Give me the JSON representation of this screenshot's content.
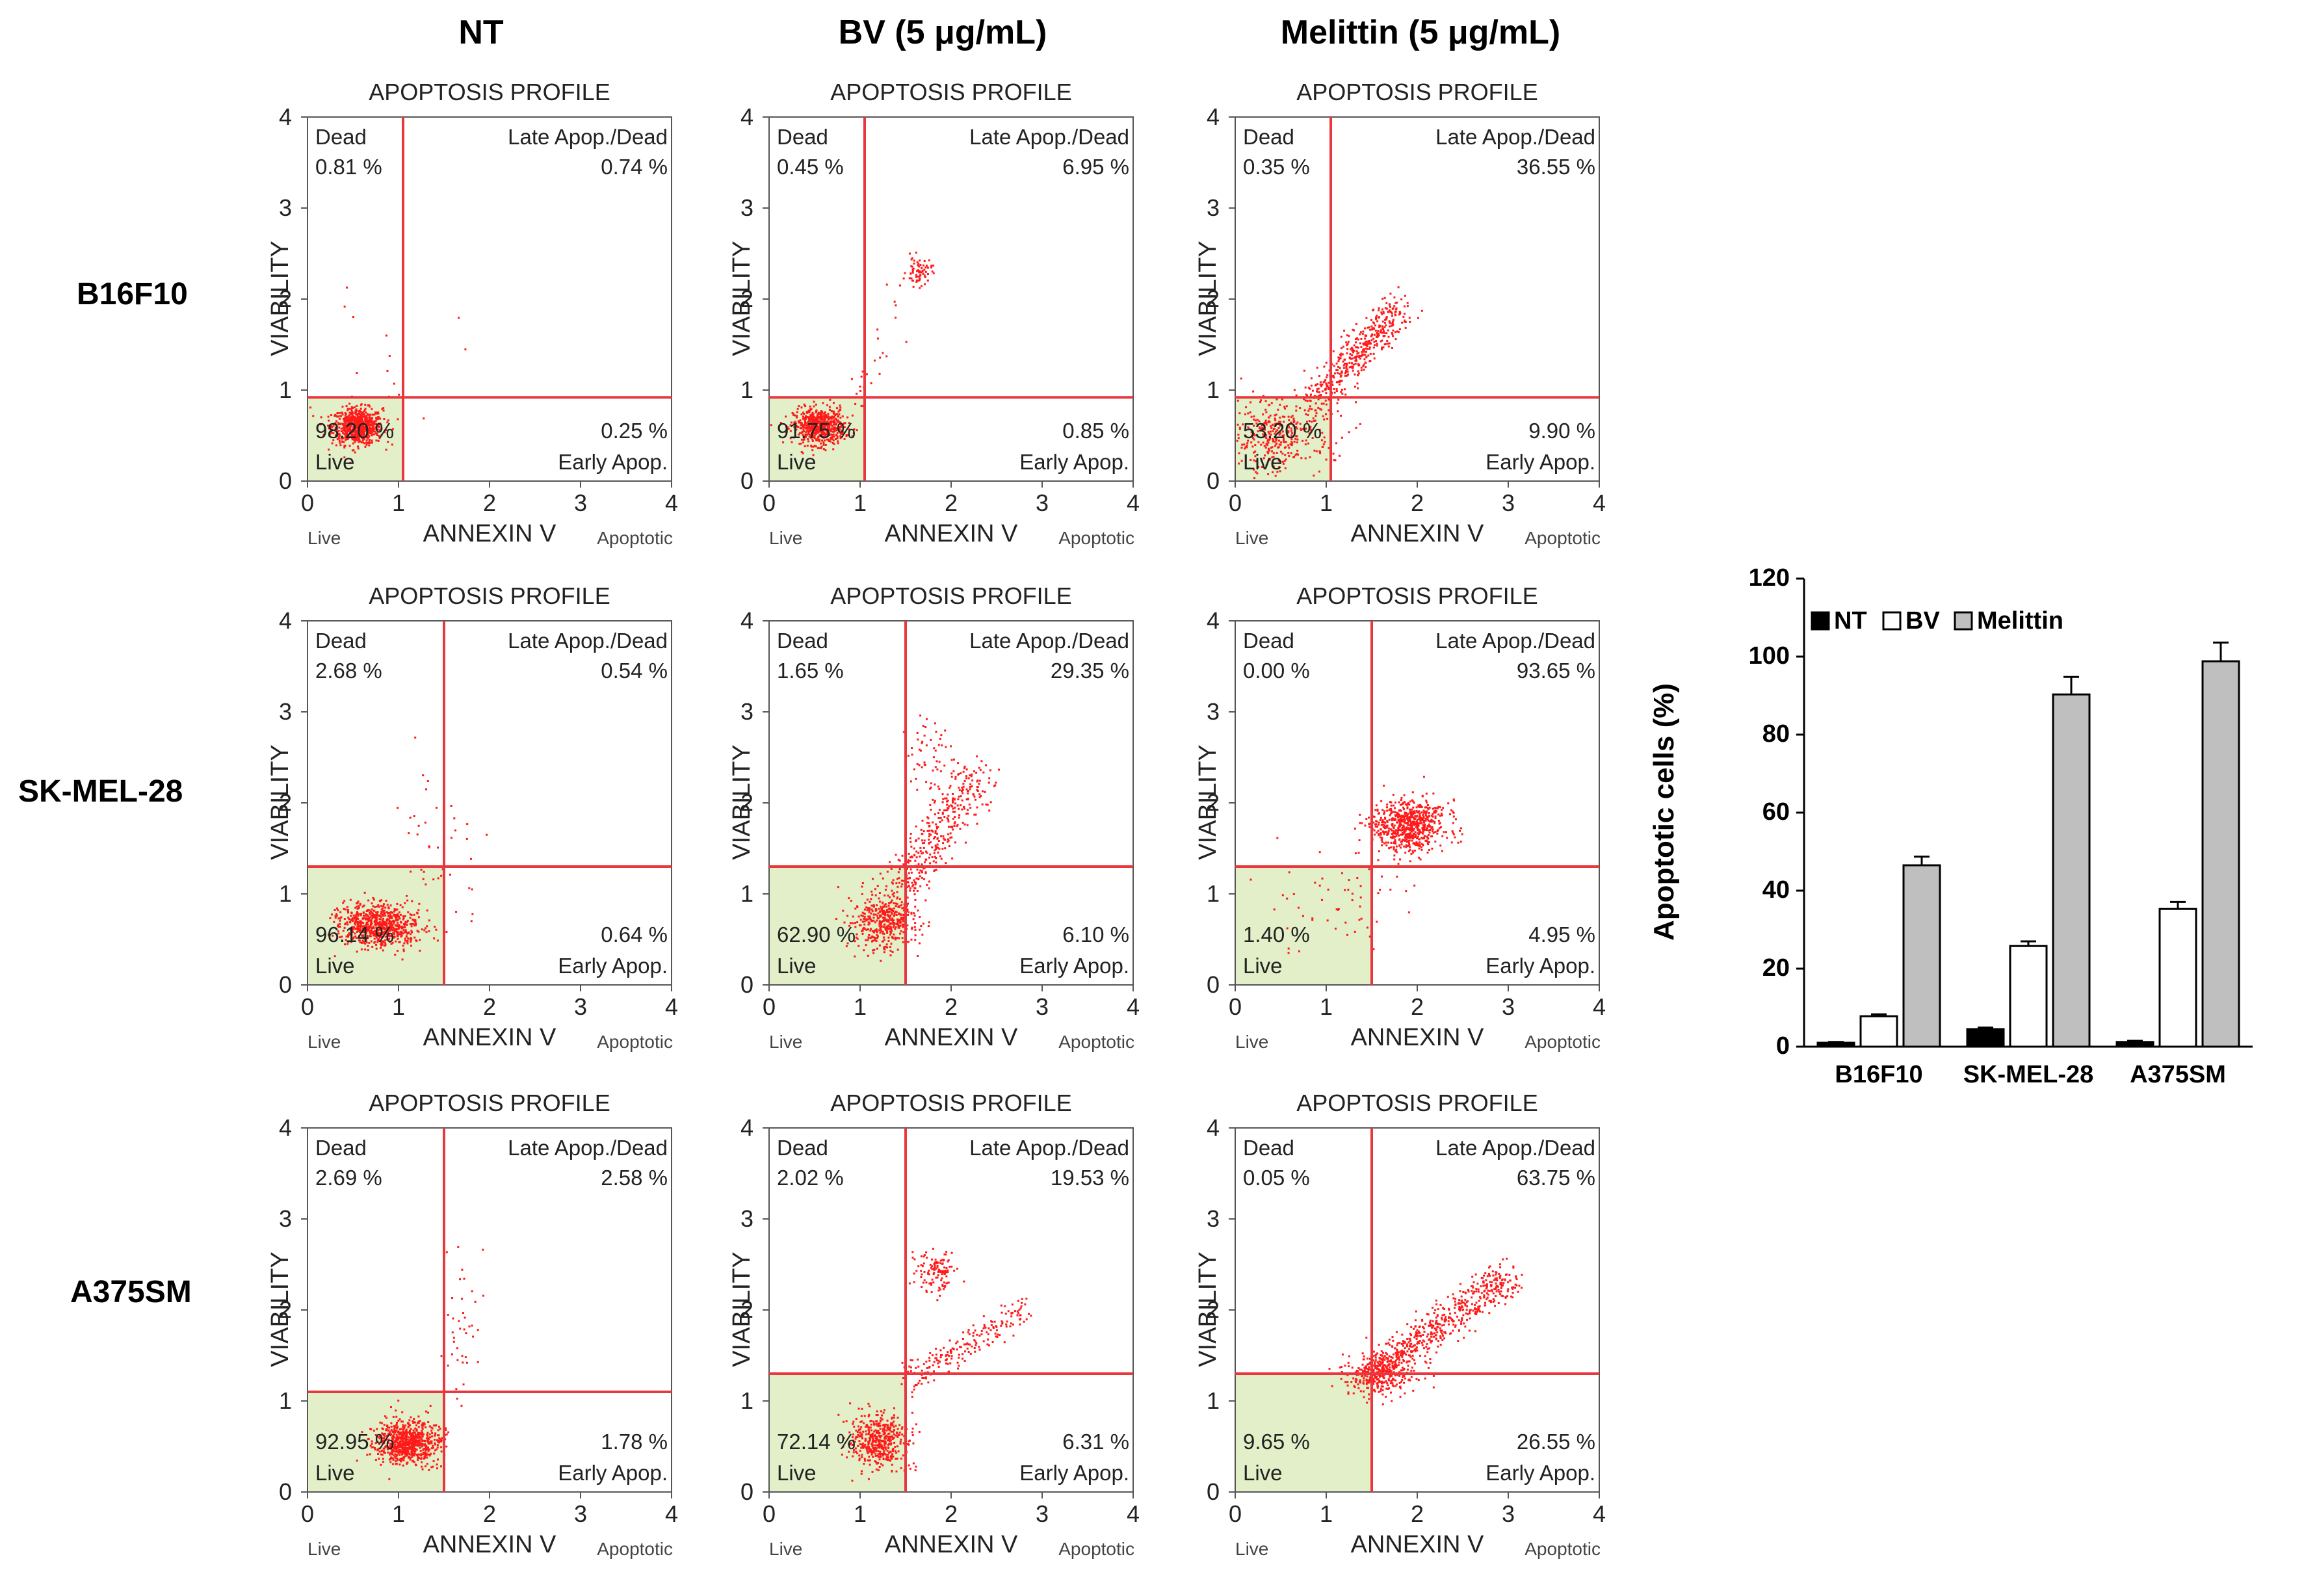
{
  "columns": [
    "NT",
    "BV (5 μg/mL)",
    "Melittin (5 μg/mL)"
  ],
  "rows": [
    "B16F10",
    "SK-MEL-28",
    "A375SM"
  ],
  "plot_labels": {
    "title": "APOPTOSIS PROFILE",
    "y_axis": "VIABILITY",
    "x_axis": "ANNEXIN V",
    "x_left": "Live",
    "x_right": "Apoptotic",
    "q_dead": "Dead",
    "q_late": "Late Apop./Dead",
    "q_early": "Early Apop.",
    "q_live": "Live",
    "ticks": [
      "0",
      "1",
      "2",
      "3",
      "4"
    ]
  },
  "chart_data": [
    {
      "type": "scatter",
      "id": "B16F10-NT",
      "xlim": [
        0,
        4
      ],
      "ylim": [
        0,
        4
      ],
      "gate_x": 1.05,
      "gate_y": 0.92,
      "dead": "0.81 %",
      "late": "0.74 %",
      "live": "98.20 %",
      "early": "0.25 %"
    },
    {
      "type": "scatter",
      "id": "B16F10-BV",
      "xlim": [
        0,
        4
      ],
      "ylim": [
        0,
        4
      ],
      "gate_x": 1.05,
      "gate_y": 0.92,
      "dead": "0.45 %",
      "late": "6.95 %",
      "live": "91.75 %",
      "early": "0.85 %"
    },
    {
      "type": "scatter",
      "id": "B16F10-Melittin",
      "xlim": [
        0,
        4
      ],
      "ylim": [
        0,
        4
      ],
      "gate_x": 1.05,
      "gate_y": 0.92,
      "dead": "0.35 %",
      "late": "36.55 %",
      "live": "53.20 %",
      "early": "9.90 %"
    },
    {
      "type": "scatter",
      "id": "SKMEL28-NT",
      "xlim": [
        0,
        4
      ],
      "ylim": [
        0,
        4
      ],
      "gate_x": 1.5,
      "gate_y": 1.3,
      "dead": "2.68 %",
      "late": "0.54 %",
      "live": "96.14 %",
      "early": "0.64 %"
    },
    {
      "type": "scatter",
      "id": "SKMEL28-BV",
      "xlim": [
        0,
        4
      ],
      "ylim": [
        0,
        4
      ],
      "gate_x": 1.5,
      "gate_y": 1.3,
      "dead": "1.65 %",
      "late": "29.35 %",
      "live": "62.90 %",
      "early": "6.10 %"
    },
    {
      "type": "scatter",
      "id": "SKMEL28-Melittin",
      "xlim": [
        0,
        4
      ],
      "ylim": [
        0,
        4
      ],
      "gate_x": 1.5,
      "gate_y": 1.3,
      "dead": "0.00 %",
      "late": "93.65 %",
      "live": "1.40 %",
      "early": "4.95 %"
    },
    {
      "type": "scatter",
      "id": "A375SM-NT",
      "xlim": [
        0,
        4
      ],
      "ylim": [
        0,
        4
      ],
      "gate_x": 1.5,
      "gate_y": 1.1,
      "dead": "2.69 %",
      "late": "2.58 %",
      "live": "92.95 %",
      "early": "1.78 %"
    },
    {
      "type": "scatter",
      "id": "A375SM-BV",
      "xlim": [
        0,
        4
      ],
      "ylim": [
        0,
        4
      ],
      "gate_x": 1.5,
      "gate_y": 1.3,
      "dead": "2.02 %",
      "late": "19.53 %",
      "live": "72.14 %",
      "early": "6.31 %"
    },
    {
      "type": "scatter",
      "id": "A375SM-Melittin",
      "xlim": [
        0,
        4
      ],
      "ylim": [
        0,
        4
      ],
      "gate_x": 1.5,
      "gate_y": 1.3,
      "dead": "0.05 %",
      "late": "63.75 %",
      "live": "9.65 %",
      "early": "26.55 %"
    },
    {
      "type": "bar",
      "id": "summary",
      "categories": [
        "B16F10",
        "SK-MEL-28",
        "A375SM"
      ],
      "series": [
        {
          "name": "NT",
          "values": [
            1.0,
            4.5,
            1.2
          ],
          "errors": [
            0.2,
            0.4,
            0.3
          ],
          "fill": "#000000"
        },
        {
          "name": "BV",
          "values": [
            7.8,
            25.8,
            35.3
          ],
          "errors": [
            0.5,
            1.2,
            1.8
          ],
          "fill": "#ffffff"
        },
        {
          "name": "Melittin",
          "values": [
            46.5,
            90.3,
            98.8
          ],
          "errors": [
            2.2,
            4.5,
            4.8
          ],
          "fill": "#bfbfbf"
        }
      ],
      "ylabel": "Apoptotic cells (%)",
      "ylim": [
        0,
        120
      ],
      "yticks": [
        "0",
        "20",
        "40",
        "60",
        "80",
        "100",
        "120"
      ]
    }
  ]
}
